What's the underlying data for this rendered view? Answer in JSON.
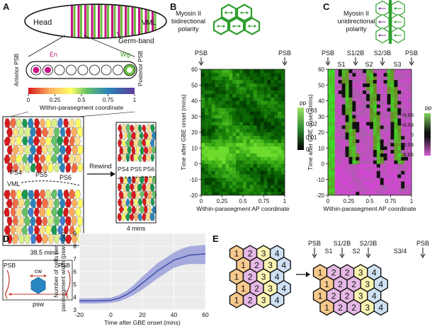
{
  "panels": {
    "A": {
      "letter": "A",
      "head": "Head",
      "vml": "VML",
      "germ_band": "Germ-band",
      "en": "En",
      "wg": "Wg",
      "anterior_psb": "Anterior PSB",
      "posterior_psb": "Posterior PSB",
      "colorbar_ticks": [
        "0",
        "0.25",
        "0.5",
        "0.75",
        "1"
      ],
      "colorbar_label": "Within-parasegment coordinate",
      "ps4": "PS4",
      "ps5": "PS5",
      "ps6": "PS6",
      "vml2": "VML",
      "time_left": "38.5 mins",
      "rewind": "Rewind",
      "time_right": "4 mins",
      "colors": {
        "magenta": "#c71585",
        "green": "#6abf40"
      }
    },
    "B": {
      "letter": "B",
      "title": [
        "Myosin II",
        "bidirectional",
        "polarity"
      ],
      "psb_left": "PSB",
      "psb_right": "PSB",
      "colorbar_label": "pp",
      "colorbar_ticks": [
        "0.03",
        "0.02",
        "0.01",
        "0"
      ]
    },
    "C": {
      "letter": "C",
      "title": [
        "Myosin II",
        "unidirectional",
        "polarity"
      ],
      "markers": [
        "PSB",
        "S1/2B",
        "S2/3B",
        "PSB"
      ],
      "segments": [
        "S1",
        "S2",
        "S3"
      ],
      "colorbar_label": "pp",
      "colorbar_ticks": [
        "-0.06",
        "-0.03",
        "0",
        "0.03",
        "0.06"
      ]
    },
    "D": {
      "letter": "D",
      "cw": "cw",
      "psw": "psw",
      "psb_left": "PSB",
      "psb_right": "PSB"
    },
    "E": {
      "letter": "E",
      "left_grid": [
        [
          "1",
          "2",
          "3",
          "4"
        ],
        [
          "1",
          "2",
          "3",
          "4"
        ],
        [
          "1",
          "2",
          "3",
          "4"
        ],
        [
          "1",
          "2",
          "3",
          "4"
        ],
        [
          "1",
          "2",
          "3",
          "4"
        ]
      ],
      "right_grid": [
        [
          "1",
          "2",
          "2",
          "3",
          "4"
        ],
        [
          "1",
          "2",
          "2",
          "3",
          "4"
        ],
        [
          "1",
          "2",
          "2",
          "3",
          "4"
        ],
        [
          "1",
          "2",
          "2",
          "3",
          "4"
        ]
      ],
      "top_markers": [
        "PSB",
        "S1/2B",
        "S2/3B",
        "PSB"
      ],
      "segments": [
        "S1",
        "S2",
        "S3/4"
      ],
      "fill_colors": {
        "1": "#f7c98d",
        "2": "#e6b8e6",
        "3": "#fbf5b3",
        "4": "#cfe0f2"
      }
    }
  },
  "chart_data": [
    {
      "type": "heatmap",
      "xlabel": "Within-parasegment AP coordinate",
      "ylabel": "Time after GBE onset (mins)",
      "xticks": [
        "0",
        "0.25",
        "0.5",
        "0.75",
        "1"
      ],
      "yticks": [
        "-20",
        "-10",
        "0",
        "10",
        "20",
        "30",
        "40",
        "50",
        "60"
      ],
      "xlim": [
        0,
        1
      ],
      "ylim": [
        -20,
        60
      ],
      "colorbar": {
        "label": "pp",
        "min": 0,
        "max": 0.03
      }
    },
    {
      "type": "heatmap",
      "xlabel": "Within-parasegment AP coordinate",
      "ylabel": "Time after GBE onset (mins)",
      "xticks": [
        "0",
        "0.25",
        "0.5",
        "0.75",
        "1"
      ],
      "yticks": [
        "-20",
        "-10",
        "0",
        "10",
        "20",
        "30",
        "40",
        "50",
        "60"
      ],
      "xlim": [
        0,
        1
      ],
      "ylim": [
        -20,
        60
      ],
      "colorbar": {
        "label": "pp",
        "min": -0.06,
        "max": 0.06
      }
    },
    {
      "type": "line",
      "xlabel": "Time after GBE onset (mins)",
      "ylabel": "Number of cells per parasegment width (psw / cw)",
      "xticks": [
        "-20",
        "0",
        "20",
        "40",
        "60"
      ],
      "yticks": [
        "3",
        "4",
        "5",
        "6",
        "7",
        "8",
        "9"
      ],
      "xlim": [
        -20,
        60
      ],
      "ylim": [
        3,
        9
      ],
      "grid": true,
      "series": [
        {
          "x": [
            -20,
            -10,
            0,
            5,
            10,
            15,
            20,
            25,
            30,
            35,
            40,
            45,
            50,
            55,
            60
          ],
          "y": [
            3.7,
            3.7,
            3.75,
            3.9,
            4.2,
            4.6,
            5.1,
            5.6,
            6.1,
            6.5,
            6.9,
            7.1,
            7.3,
            7.35,
            7.4
          ],
          "lower": [
            3.5,
            3.5,
            3.55,
            3.65,
            3.9,
            4.2,
            4.6,
            5.05,
            5.5,
            5.9,
            6.3,
            6.5,
            6.6,
            6.6,
            6.6
          ],
          "upper": [
            3.9,
            3.9,
            3.95,
            4.15,
            4.5,
            5.0,
            5.6,
            6.15,
            6.7,
            7.1,
            7.5,
            7.8,
            8.0,
            8.05,
            8.1
          ],
          "color": "#3f4fa8"
        }
      ]
    }
  ]
}
